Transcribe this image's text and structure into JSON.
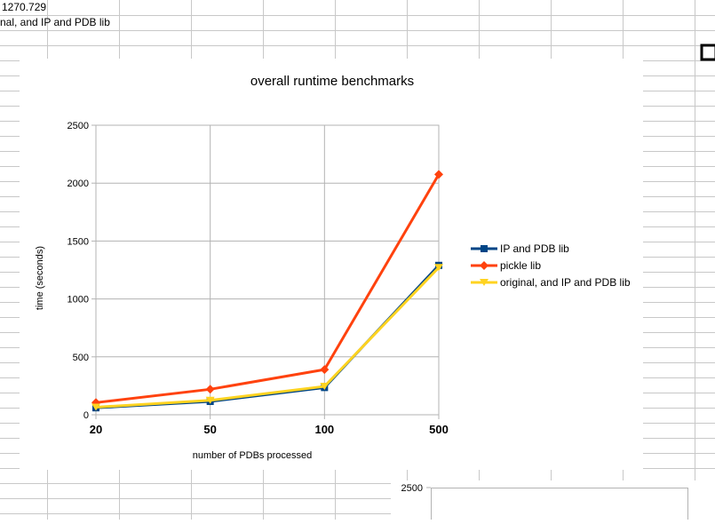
{
  "spreadsheet": {
    "cell_value": "1270.729",
    "cell_series_label": "nal, and IP and PDB lib",
    "second_chart_axis_top": "2500"
  },
  "chart_data": {
    "type": "line",
    "title": "overall runtime benchmarks",
    "xlabel": "number of PDBs processed",
    "ylabel": "time (seconds)",
    "categories": [
      "20",
      "50",
      "100",
      "500"
    ],
    "ylim": [
      0,
      2500
    ],
    "yticks": [
      "0",
      "500",
      "1000",
      "1500",
      "2000",
      "2500"
    ],
    "grid": true,
    "legend_position": "right",
    "series": [
      {
        "name": "IP and PDB lib",
        "values": [
          60,
          115,
          235,
          1290
        ],
        "color": "#004586",
        "marker": "square"
      },
      {
        "name": "pickle lib",
        "values": [
          105,
          220,
          390,
          2075
        ],
        "color": "#ff420e",
        "marker": "diamond"
      },
      {
        "name": "original, and IP and PDB lib",
        "values": [
          65,
          125,
          245,
          1271
        ],
        "color": "#ffd320",
        "marker": "triangle-down"
      }
    ]
  }
}
